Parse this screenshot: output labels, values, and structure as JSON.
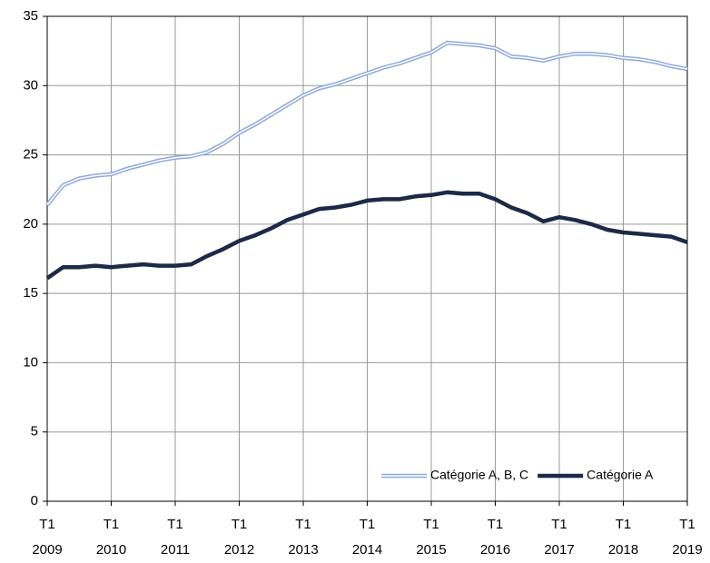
{
  "chart_data": {
    "type": "line",
    "categories": [
      "T1 2009",
      null,
      null,
      null,
      "T1 2010",
      null,
      null,
      null,
      "T1 2011",
      null,
      null,
      null,
      "T1 2012",
      null,
      null,
      null,
      "T1 2013",
      null,
      null,
      null,
      "T1 2014",
      null,
      null,
      null,
      "T1 2015",
      null,
      null,
      null,
      "T1 2016",
      null,
      null,
      null,
      "T1 2017",
      null,
      null,
      null,
      "T1 2018",
      null,
      null,
      null,
      "T1 2019"
    ],
    "series": [
      {
        "name": "Catégorie A, B, C",
        "color": "#8eaadb",
        "values": [
          21.4,
          22.8,
          23.3,
          23.5,
          23.6,
          24.0,
          24.3,
          24.6,
          24.8,
          24.9,
          25.2,
          25.8,
          26.6,
          27.2,
          27.9,
          28.6,
          29.3,
          29.8,
          30.1,
          30.5,
          30.9,
          31.3,
          31.6,
          32.0,
          32.4,
          33.1,
          33.0,
          32.9,
          32.7,
          32.1,
          32.0,
          31.8,
          32.1,
          32.3,
          32.3,
          32.2,
          32.0,
          31.9,
          31.7,
          31.4,
          31.2
        ]
      },
      {
        "name": "Catégorie A",
        "color": "#1b2a47",
        "values": [
          16.1,
          16.9,
          16.9,
          17.0,
          16.9,
          17.0,
          17.1,
          17.0,
          17.0,
          17.1,
          17.7,
          18.2,
          18.8,
          19.2,
          19.7,
          20.3,
          20.7,
          21.1,
          21.2,
          21.4,
          21.7,
          21.8,
          21.8,
          22.0,
          22.1,
          22.3,
          22.2,
          22.2,
          21.8,
          21.2,
          20.8,
          20.2,
          20.5,
          20.3,
          20.0,
          19.6,
          19.4,
          19.3,
          19.2,
          19.1,
          18.7
        ]
      }
    ],
    "ylim": [
      0,
      35
    ],
    "yticks": [
      0,
      5,
      10,
      15,
      20,
      25,
      30,
      35
    ],
    "grid": true,
    "legend": "lower right"
  }
}
